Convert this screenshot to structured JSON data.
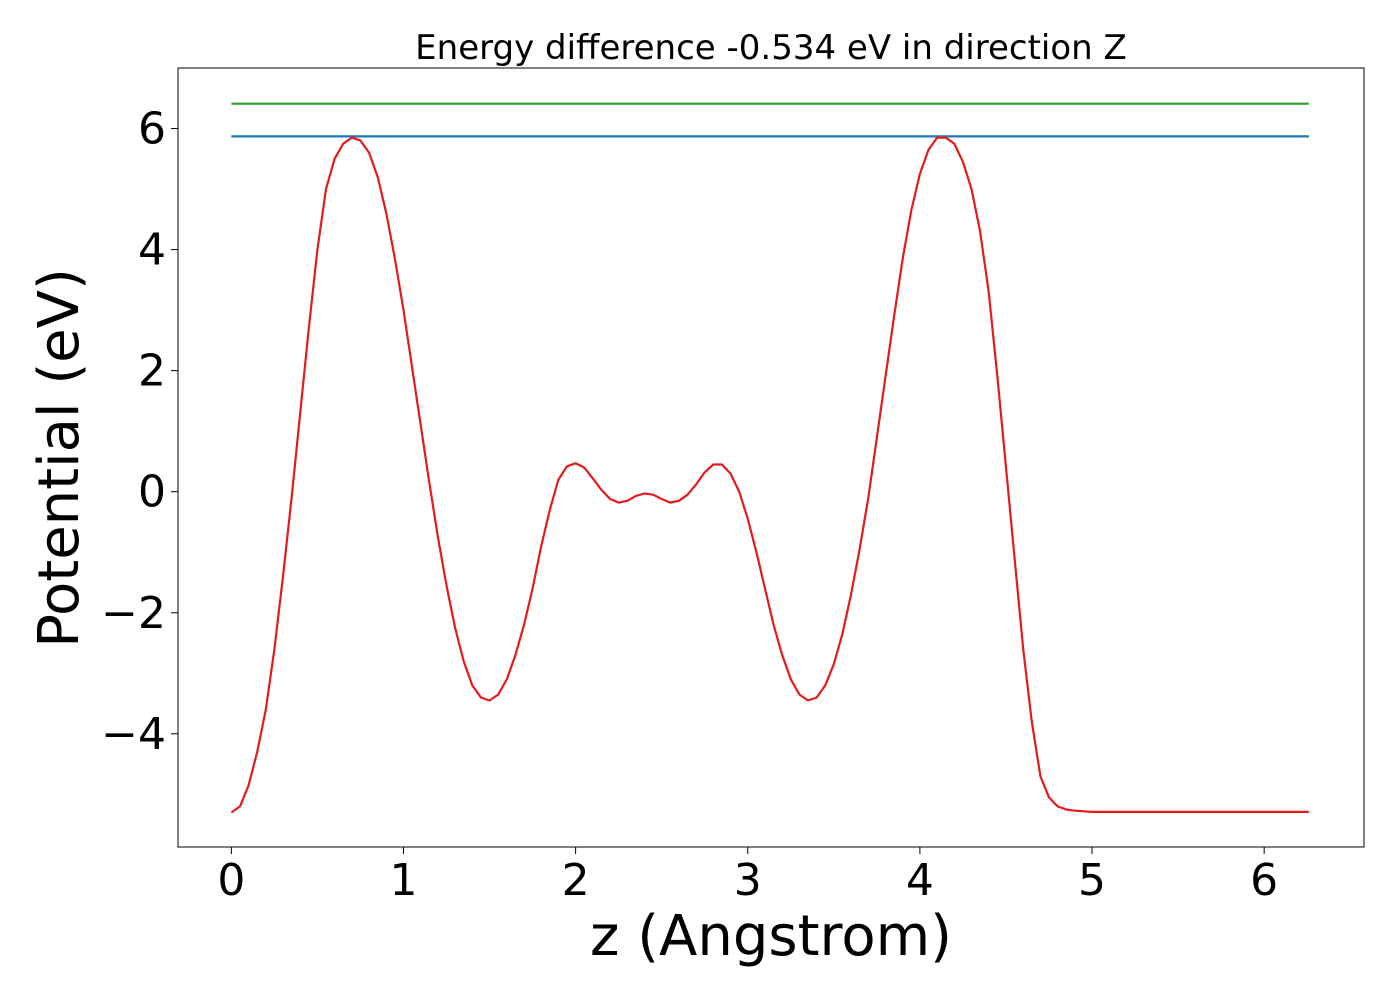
{
  "chart_data": {
    "type": "line",
    "title": "Energy difference -0.534 eV in direction Z",
    "xlabel": "z (Angstrom)",
    "ylabel": "Potential (eV)",
    "xlim": [
      -0.31,
      6.58
    ],
    "ylim": [
      -5.87,
      7.0
    ],
    "xticks": [
      0,
      1,
      2,
      3,
      4,
      5,
      6
    ],
    "xtick_labels": [
      "0",
      "1",
      "2",
      "3",
      "4",
      "5",
      "6"
    ],
    "yticks": [
      -4,
      -2,
      0,
      2,
      4,
      6
    ],
    "ytick_labels": [
      "−4",
      "−2",
      "0",
      "2",
      "4",
      "6"
    ],
    "grid": false,
    "series": [
      {
        "color": "#2ca02c",
        "x": [
          0,
          6.26
        ],
        "y": [
          6.41,
          6.41
        ]
      },
      {
        "color": "#1f77b4",
        "x": [
          0,
          6.26
        ],
        "y": [
          5.87,
          5.87
        ]
      },
      {
        "color": "#e41a1c",
        "x": [
          0.0,
          0.05,
          0.1,
          0.15,
          0.2,
          0.25,
          0.3,
          0.35,
          0.4,
          0.45,
          0.5,
          0.55,
          0.6,
          0.65,
          0.7,
          0.75,
          0.8,
          0.85,
          0.9,
          0.95,
          1.0,
          1.05,
          1.1,
          1.15,
          1.2,
          1.25,
          1.3,
          1.35,
          1.4,
          1.45,
          1.5,
          1.55,
          1.6,
          1.65,
          1.7,
          1.75,
          1.8,
          1.85,
          1.9,
          1.95,
          2.0,
          2.05,
          2.1,
          2.15,
          2.2,
          2.25,
          2.3,
          2.35,
          2.4,
          2.45,
          2.5,
          2.55,
          2.6,
          2.65,
          2.7,
          2.75,
          2.8,
          2.85,
          2.9,
          2.95,
          3.0,
          3.05,
          3.1,
          3.15,
          3.2,
          3.25,
          3.3,
          3.35,
          3.4,
          3.45,
          3.5,
          3.55,
          3.6,
          3.65,
          3.7,
          3.75,
          3.8,
          3.85,
          3.9,
          3.95,
          4.0,
          4.05,
          4.1,
          4.15,
          4.2,
          4.25,
          4.3,
          4.35,
          4.4,
          4.45,
          4.5,
          4.55,
          4.6,
          4.65,
          4.7,
          4.75,
          4.8,
          4.85,
          4.9,
          4.95,
          5.0,
          5.05,
          5.1,
          5.15,
          5.2,
          5.25,
          5.3,
          5.35,
          5.4,
          5.45,
          5.5,
          5.55,
          5.6,
          5.65,
          5.7,
          5.75,
          5.8,
          5.85,
          5.9,
          5.95,
          6.0,
          6.05,
          6.1,
          6.15,
          6.2,
          6.26
        ],
        "y": [
          -5.3,
          -5.2,
          -4.85,
          -4.3,
          -3.6,
          -2.6,
          -1.4,
          -0.1,
          1.3,
          2.7,
          4.0,
          5.0,
          5.5,
          5.75,
          5.85,
          5.8,
          5.6,
          5.2,
          4.6,
          3.85,
          3.0,
          2.05,
          1.1,
          0.15,
          -0.75,
          -1.55,
          -2.25,
          -2.8,
          -3.2,
          -3.4,
          -3.45,
          -3.35,
          -3.1,
          -2.7,
          -2.2,
          -1.6,
          -0.9,
          -0.3,
          0.2,
          0.42,
          0.47,
          0.4,
          0.22,
          0.03,
          -0.12,
          -0.18,
          -0.15,
          -0.07,
          -0.03,
          -0.05,
          -0.12,
          -0.18,
          -0.15,
          -0.05,
          0.12,
          0.32,
          0.45,
          0.45,
          0.3,
          0.0,
          -0.45,
          -1.0,
          -1.6,
          -2.2,
          -2.7,
          -3.1,
          -3.35,
          -3.45,
          -3.4,
          -3.2,
          -2.85,
          -2.35,
          -1.7,
          -0.95,
          -0.1,
          0.9,
          1.9,
          2.9,
          3.85,
          4.65,
          5.25,
          5.65,
          5.85,
          5.85,
          5.75,
          5.45,
          5.0,
          4.3,
          3.3,
          1.9,
          0.4,
          -1.1,
          -2.6,
          -3.8,
          -4.7,
          -5.05,
          -5.2,
          -5.25,
          -5.27,
          -5.28,
          -5.29,
          -5.29,
          -5.29,
          -5.29,
          -5.29,
          -5.29,
          -5.29,
          -5.29,
          -5.29,
          -5.29,
          -5.29,
          -5.29,
          -5.29,
          -5.29,
          -5.29,
          -5.29,
          -5.29,
          -5.29,
          -5.29,
          -5.29,
          -5.29,
          -5.29,
          -5.29,
          -5.29,
          -5.29,
          -5.29
        ]
      }
    ]
  }
}
